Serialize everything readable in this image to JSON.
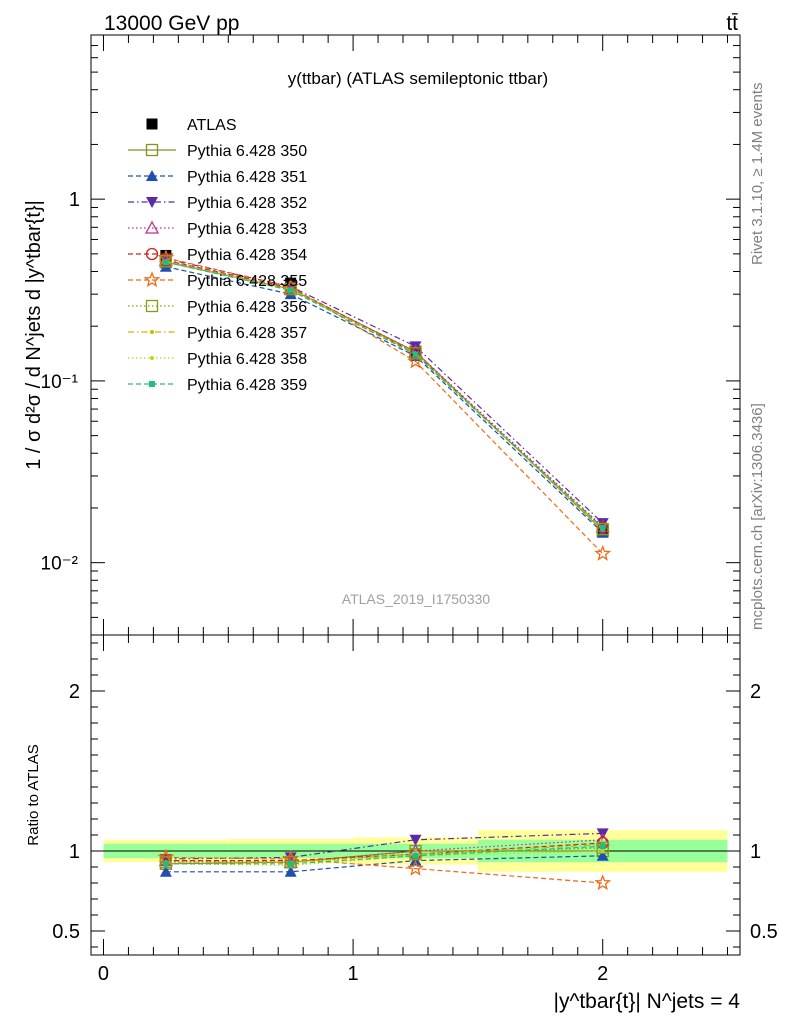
{
  "header": {
    "energy": "13000 GeV pp",
    "process": "tt̄"
  },
  "side_labels": {
    "rivet": "Rivet 3.1.10, ≥ 1.4M events",
    "mcplots": "mcplots.cern.ch [arXiv:1306.3436]"
  },
  "watermark": "ATLAS_2019_I1750330",
  "chart_data": [
    {
      "type": "line",
      "title": "y(ttbar) (ATLAS semileptonic ttbar)",
      "ylabel": "1 / σ d²σ / d N^jets d |y^tbar{t}|",
      "xlabel": "|y^tbar{t}| N^jets = 4",
      "yscale": "log",
      "ylim": [
        0.004,
        8
      ],
      "xlim": [
        -0.05,
        2.55
      ],
      "x_ticks": [
        "0",
        "1",
        "2"
      ],
      "y_ticks": [
        "10⁻²",
        "10⁻¹",
        "1"
      ],
      "x": [
        0.25,
        0.75,
        1.25,
        2.0
      ],
      "legend_position": "top-left",
      "series": [
        {
          "name": "ATLAS",
          "color": "#000000",
          "marker": "square-filled",
          "dash": "none",
          "values": [
            0.49,
            0.345,
            0.145,
            0.015
          ]
        },
        {
          "name": "Pythia 6.428 350",
          "color": "#8c8c2a",
          "marker": "square-open",
          "dash": "solid",
          "values": [
            0.45,
            0.32,
            0.145,
            0.015
          ]
        },
        {
          "name": "Pythia 6.428 351",
          "color": "#1f4fb0",
          "marker": "triangle-up-filled",
          "dash": "dashed",
          "values": [
            0.425,
            0.3,
            0.137,
            0.0146
          ]
        },
        {
          "name": "Pythia 6.428 352",
          "color": "#5a2aa8",
          "marker": "triangle-down-filled",
          "dash": "dashdot",
          "values": [
            0.47,
            0.33,
            0.155,
            0.0165
          ]
        },
        {
          "name": "Pythia 6.428 353",
          "color": "#c0308c",
          "marker": "triangle-up-open",
          "dash": "dotted",
          "values": [
            0.46,
            0.32,
            0.145,
            0.0158
          ]
        },
        {
          "name": "Pythia 6.428 354",
          "color": "#cc2222",
          "marker": "circle-open",
          "dash": "dashed",
          "values": [
            0.46,
            0.325,
            0.142,
            0.0156
          ]
        },
        {
          "name": "Pythia 6.428 355",
          "color": "#ee6a14",
          "marker": "star-open",
          "dash": "dashed",
          "values": [
            0.475,
            0.33,
            0.128,
            0.0112
          ]
        },
        {
          "name": "Pythia 6.428 356",
          "color": "#8c9a18",
          "marker": "square-open",
          "dash": "dotted",
          "values": [
            0.455,
            0.32,
            0.142,
            0.0153
          ]
        },
        {
          "name": "Pythia 6.428 357",
          "color": "#d4b400",
          "marker": "dot",
          "dash": "dashdot",
          "values": [
            0.455,
            0.32,
            0.142,
            0.0155
          ]
        },
        {
          "name": "Pythia 6.428 358",
          "color": "#c4d416",
          "marker": "dot",
          "dash": "dotted",
          "values": [
            0.45,
            0.315,
            0.14,
            0.0152
          ]
        },
        {
          "name": "Pythia 6.428 359",
          "color": "#1fbf7f",
          "marker": "square-small-filled",
          "dash": "dashed",
          "values": [
            0.45,
            0.315,
            0.14,
            0.0155
          ]
        }
      ]
    },
    {
      "type": "line",
      "ylabel": "Ratio to ATLAS",
      "ylim": [
        0.35,
        2.35
      ],
      "y_ticks": [
        "0.5",
        "1",
        "2"
      ],
      "bands": {
        "edges": [
          0,
          0.5,
          1.0,
          1.5,
          2.5
        ],
        "yellow_lo": [
          0.93,
          0.925,
          0.915,
          0.87
        ],
        "yellow_hi": [
          1.07,
          1.075,
          1.085,
          1.13
        ],
        "green_lo": [
          0.955,
          0.955,
          0.955,
          0.93
        ],
        "green_hi": [
          1.045,
          1.045,
          1.045,
          1.07
        ],
        "yellow_color": "#ffff99",
        "green_color": "#99ff99"
      },
      "x": [
        0.25,
        0.75,
        1.25,
        2.0
      ],
      "series": [
        {
          "name": "Pythia 6.428 350",
          "values": [
            0.92,
            0.93,
            1.0,
            1.0
          ]
        },
        {
          "name": "Pythia 6.428 351",
          "values": [
            0.87,
            0.87,
            0.94,
            0.97
          ]
        },
        {
          "name": "Pythia 6.428 352",
          "values": [
            0.95,
            0.96,
            1.07,
            1.11
          ]
        },
        {
          "name": "Pythia 6.428 353",
          "values": [
            0.94,
            0.93,
            1.0,
            1.07
          ]
        },
        {
          "name": "Pythia 6.428 354",
          "values": [
            0.94,
            0.94,
            0.98,
            1.05
          ]
        },
        {
          "name": "Pythia 6.428 355",
          "values": [
            0.96,
            0.95,
            0.89,
            0.8
          ]
        },
        {
          "name": "Pythia 6.428 356",
          "values": [
            0.93,
            0.93,
            0.98,
            1.02
          ]
        },
        {
          "name": "Pythia 6.428 357",
          "values": [
            0.93,
            0.93,
            0.98,
            1.04
          ]
        },
        {
          "name": "Pythia 6.428 358",
          "values": [
            0.92,
            0.91,
            0.97,
            1.0
          ]
        },
        {
          "name": "Pythia 6.428 359",
          "values": [
            0.92,
            0.92,
            0.97,
            1.03
          ]
        }
      ]
    }
  ]
}
